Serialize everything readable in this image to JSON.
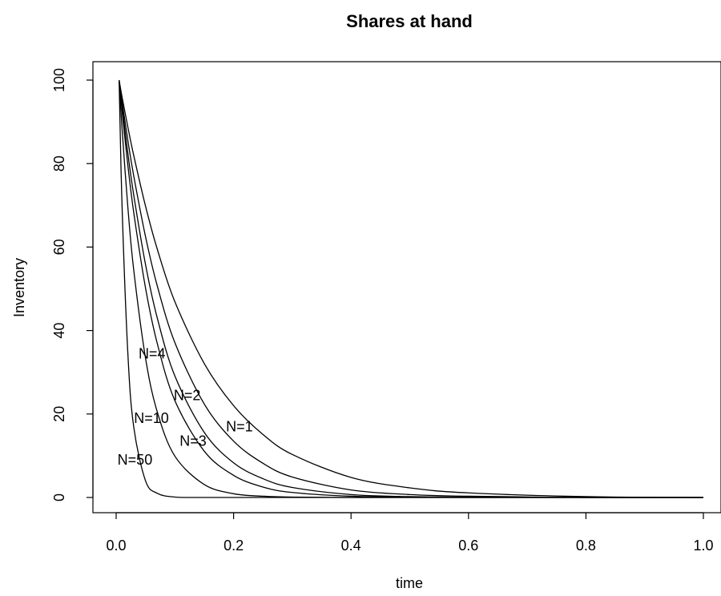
{
  "chart_data": {
    "type": "line",
    "title": "Shares at hand",
    "xlabel": "time",
    "ylabel": "Inventory",
    "xlim": [
      0,
      1
    ],
    "ylim": [
      -2.5,
      102
    ],
    "x_ticks": [
      "0.0",
      "0.2",
      "0.4",
      "0.6",
      "0.8",
      "1.0"
    ],
    "y_ticks": [
      "0",
      "20",
      "40",
      "60",
      "80",
      "100"
    ],
    "x_tick_values": [
      0,
      0.2,
      0.4,
      0.6,
      0.8,
      1.0
    ],
    "y_tick_values": [
      0,
      20,
      40,
      60,
      80,
      100
    ],
    "grid": false,
    "legend": "none",
    "line_color": "#000000",
    "x": [
      0.005,
      0.01,
      0.02,
      0.03,
      0.05,
      0.07,
      0.1,
      0.15,
      0.2,
      0.25,
      0.3,
      0.4,
      0.5,
      0.6,
      0.8,
      1.0
    ],
    "series": [
      {
        "name": "N=1",
        "label_at": [
          0.21,
          17
        ],
        "values": [
          100,
          96.0,
          88.7,
          81.9,
          69.8,
          59.5,
          46.9,
          32.1,
          22.0,
          15.1,
          10.3,
          4.8,
          2.3,
          1.1,
          0.2,
          0.0
        ]
      },
      {
        "name": "N=2",
        "label_at": [
          0.121,
          24.5
        ],
        "values": [
          100,
          94.9,
          85.5,
          77.0,
          62.5,
          50.7,
          37.1,
          22.4,
          13.5,
          8.2,
          4.9,
          1.8,
          0.7,
          0.3,
          0.0,
          0.0
        ]
      },
      {
        "name": "N=3",
        "label_at": [
          0.131,
          13.5
        ],
        "values": [
          100,
          93.8,
          82.4,
          72.4,
          55.8,
          43.0,
          29.1,
          15.6,
          8.3,
          4.5,
          2.4,
          0.7,
          0.2,
          0.1,
          0.0,
          0.0
        ]
      },
      {
        "name": "N=4",
        "label_at": [
          0.061,
          34.5
        ],
        "values": [
          100,
          92.7,
          79.5,
          68.2,
          50.2,
          36.9,
          23.2,
          11.1,
          5.3,
          2.5,
          1.2,
          0.3,
          0.1,
          0.0,
          0.0,
          0.0
        ]
      },
      {
        "name": "N=10",
        "label_at": [
          0.06,
          19
        ],
        "values": [
          100,
          88.5,
          69.4,
          54.4,
          33.4,
          20.5,
          9.9,
          3.1,
          0.9,
          0.3,
          0.1,
          0.0,
          0.0,
          0.0,
          0.0,
          0.0
        ]
      },
      {
        "name": "N=50",
        "label_at": [
          0.032,
          9
        ],
        "values": [
          100,
          70.0,
          34.3,
          16.8,
          4.0,
          1.0,
          0.1,
          0.0,
          0.0,
          0.0,
          0.0,
          0.0,
          0.0,
          0.0,
          0.0,
          0.0
        ]
      }
    ]
  }
}
